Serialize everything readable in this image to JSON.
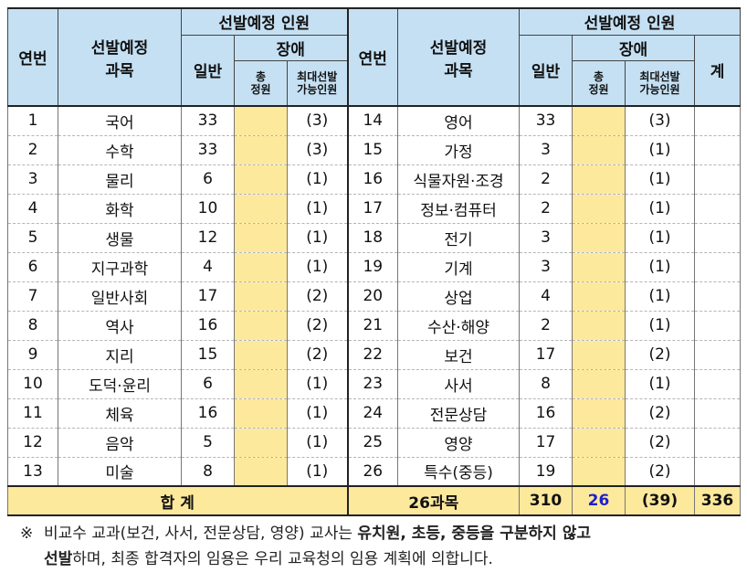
{
  "headers": {
    "no": "연번",
    "subject_line1": "선발예정",
    "subject_line2": "과목",
    "group": "선발예정 인원",
    "general": "일반",
    "disabled": "장애",
    "total_line1": "총",
    "total_line2": "정원",
    "max_line1": "최대선발",
    "max_line2": "가능인원",
    "sum_col": "계"
  },
  "left_rows": [
    {
      "no": "1",
      "subject": "국어",
      "general": "33",
      "max": "(3)"
    },
    {
      "no": "2",
      "subject": "수학",
      "general": "33",
      "max": "(3)"
    },
    {
      "no": "3",
      "subject": "물리",
      "general": "6",
      "max": "(1)"
    },
    {
      "no": "4",
      "subject": "화학",
      "general": "10",
      "max": "(1)"
    },
    {
      "no": "5",
      "subject": "생물",
      "general": "12",
      "max": "(1)"
    },
    {
      "no": "6",
      "subject": "지구과학",
      "general": "4",
      "max": "(1)"
    },
    {
      "no": "7",
      "subject": "일반사회",
      "general": "17",
      "max": "(2)"
    },
    {
      "no": "8",
      "subject": "역사",
      "general": "16",
      "max": "(2)"
    },
    {
      "no": "9",
      "subject": "지리",
      "general": "15",
      "max": "(2)"
    },
    {
      "no": "10",
      "subject": "도덕·윤리",
      "general": "6",
      "max": "(1)"
    },
    {
      "no": "11",
      "subject": "체육",
      "general": "16",
      "max": "(1)"
    },
    {
      "no": "12",
      "subject": "음악",
      "general": "5",
      "max": "(1)"
    },
    {
      "no": "13",
      "subject": "미술",
      "general": "8",
      "max": "(1)"
    }
  ],
  "right_rows": [
    {
      "no": "14",
      "subject": "영어",
      "general": "33",
      "max": "(3)"
    },
    {
      "no": "15",
      "subject": "가정",
      "general": "3",
      "max": "(1)"
    },
    {
      "no": "16",
      "subject": "식물자원·조경",
      "general": "2",
      "max": "(1)"
    },
    {
      "no": "17",
      "subject": "정보·컴퓨터",
      "general": "2",
      "max": "(1)"
    },
    {
      "no": "18",
      "subject": "전기",
      "general": "3",
      "max": "(1)"
    },
    {
      "no": "19",
      "subject": "기계",
      "general": "3",
      "max": "(1)"
    },
    {
      "no": "20",
      "subject": "상업",
      "general": "4",
      "max": "(1)"
    },
    {
      "no": "21",
      "subject": "수산·해양",
      "general": "2",
      "max": "(1)"
    },
    {
      "no": "22",
      "subject": "보건",
      "general": "17",
      "max": "(2)"
    },
    {
      "no": "23",
      "subject": "사서",
      "general": "8",
      "max": "(1)"
    },
    {
      "no": "24",
      "subject": "전문상담",
      "general": "16",
      "max": "(2)"
    },
    {
      "no": "25",
      "subject": "영양",
      "general": "17",
      "max": "(2)"
    },
    {
      "no": "26",
      "subject": "특수(중등)",
      "general": "19",
      "max": "(2)"
    }
  ],
  "total_row": {
    "label": "합 계",
    "subjects": "26과목",
    "general": "310",
    "disabled_total": "26",
    "max": "(39)",
    "sum": "336"
  },
  "note": {
    "mark": "※",
    "text_before": "비교수 교과(보건, 사서, 전문상담, 영양) 교사는 ",
    "bold_1": "유치원, 초등, 중등을 구분하지 않고",
    "bold_2": "선발",
    "text_after": "하며, 최종 합격자의 임용은 우리 교육청의 임용 계획에 의합니다."
  },
  "colors": {
    "header_bg": "#c5e0f3",
    "highlight_bg": "#fde99c",
    "total_blue": "#1f1fd0"
  }
}
